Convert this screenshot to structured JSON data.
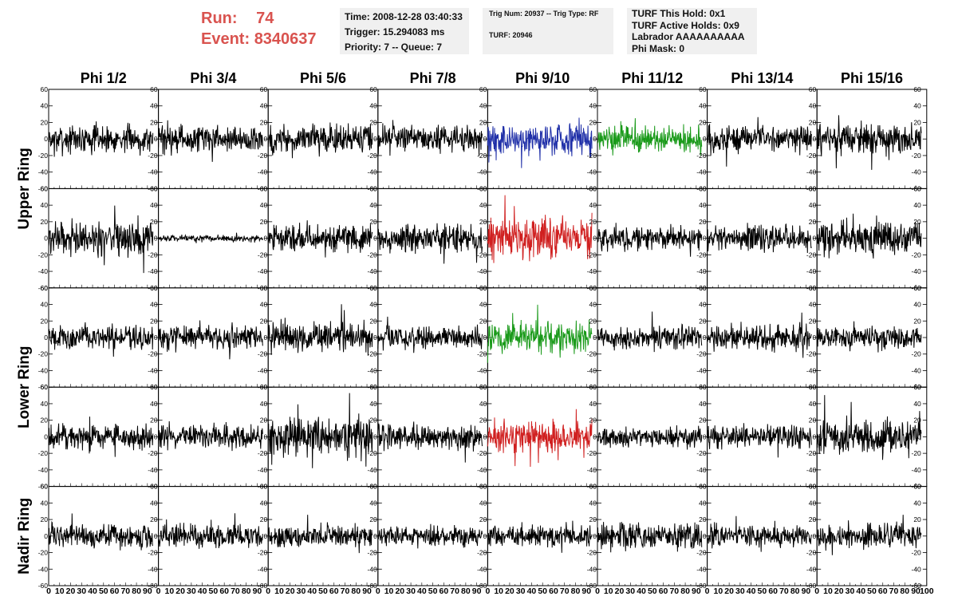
{
  "header": {
    "run_label": "Run:",
    "run_value": "74",
    "event_label": "Event:",
    "event_value": "8340637",
    "time": "Time: 2008-12-28 03:40:33",
    "trigger": "Trigger: 15.294083 ms",
    "priority": "Priority: 7 -- Queue: 7",
    "trig_num": "Trig Num: 20937 -- Trig Type: RF",
    "turf": "TURF: 20946",
    "turf_this_hold": "TURF This Hold: 0x1",
    "turf_active_holds": "TURF Active Holds: 0x9",
    "labrador": "Labrador AAAAAAAAAA",
    "phi_mask": "Phi Mask: 0"
  },
  "chart_data": {
    "type": "line",
    "columns": [
      "Phi 1/2",
      "Phi 3/4",
      "Phi 5/6",
      "Phi 7/8",
      "Phi 9/10",
      "Phi 11/12",
      "Phi 13/14",
      "Phi 15/16"
    ],
    "ring_labels": [
      {
        "label": "Upper Ring",
        "rows": [
          0,
          1
        ]
      },
      {
        "label": "Lower Ring",
        "rows": [
          2,
          3
        ]
      },
      {
        "label": "Nadir Ring",
        "rows": [
          4
        ]
      }
    ],
    "xlim": [
      0,
      100
    ],
    "ylim": [
      -60,
      60
    ],
    "xticks": [
      "0",
      "10",
      "20",
      "30",
      "40",
      "50",
      "60",
      "70",
      "80",
      "90",
      "100"
    ],
    "yticks": [
      "-60",
      "-40",
      "-20",
      "0",
      "20",
      "40",
      "60"
    ],
    "samples_per_trace": 260,
    "x_extent": 95,
    "default_color": "#000000",
    "highlight_colors": {
      "0-4": "#1f2fa8",
      "0-5": "#1a9a1a",
      "1-4": "#d02020",
      "2-4": "#1a9a1a",
      "3-4": "#d02020"
    },
    "trace_amplitudes": [
      [
        14,
        14,
        15,
        13,
        18,
        14,
        13,
        16
      ],
      [
        18,
        3,
        14,
        14,
        20,
        12,
        14,
        16
      ],
      [
        12,
        13,
        15,
        12,
        16,
        12,
        13,
        12
      ],
      [
        13,
        12,
        20,
        13,
        16,
        10,
        11,
        17
      ],
      [
        12,
        12,
        11,
        11,
        11,
        14,
        11,
        12
      ]
    ]
  }
}
